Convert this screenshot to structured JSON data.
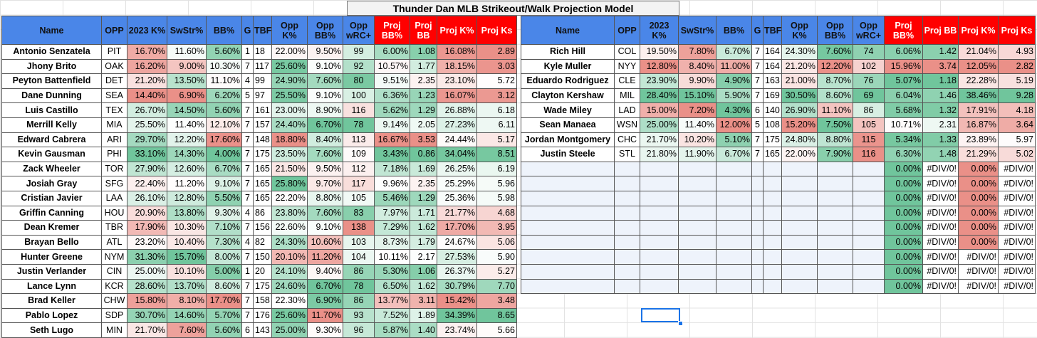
{
  "title": "Thunder Dan MLB Strikeout/Walk Projection Model",
  "colors": {
    "header_blue": "#4a86e8",
    "header_red": "#ff0000",
    "good_green": "#57bb8a",
    "bad_red": "#e67c73",
    "neutral": "#ffffff",
    "selection": "#1a73e8"
  },
  "columns": [
    "Name",
    "OPP",
    "2023 K%",
    "SwStr%",
    "BB%",
    "G",
    "TBF",
    "Opp K%",
    "Opp BB%",
    "Opp wRC+",
    "Proj BB%",
    "Proj BB",
    "Proj K%",
    "Proj Ks"
  ],
  "red_header_columns": [
    10,
    11,
    12,
    13
  ],
  "left_rows": [
    [
      "Antonio Senzatela",
      "PIT",
      "16.70%",
      "11.60%",
      "5.60%",
      "1",
      "18",
      "22.00%",
      "9.50%",
      "99",
      "6.00%",
      "1.08",
      "16.08%",
      "2.89"
    ],
    [
      "Jhony Brito",
      "OAK",
      "16.20%",
      "9.00%",
      "10.30%",
      "7",
      "117",
      "25.60%",
      "9.10%",
      "92",
      "10.57%",
      "1.77",
      "18.15%",
      "3.03"
    ],
    [
      "Peyton Battenfield",
      "DET",
      "21.20%",
      "13.50%",
      "11.10%",
      "4",
      "99",
      "24.90%",
      "7.60%",
      "80",
      "9.51%",
      "2.35",
      "23.10%",
      "5.72"
    ],
    [
      "Dane Dunning",
      "SEA",
      "14.40%",
      "6.90%",
      "6.20%",
      "5",
      "97",
      "25.50%",
      "9.10%",
      "100",
      "6.36%",
      "1.23",
      "16.07%",
      "3.12"
    ],
    [
      "Luis Castillo",
      "TEX",
      "26.70%",
      "14.50%",
      "5.60%",
      "7",
      "161",
      "23.00%",
      "8.90%",
      "116",
      "5.62%",
      "1.29",
      "26.88%",
      "6.18"
    ],
    [
      "Merrill Kelly",
      "MIA",
      "25.50%",
      "11.40%",
      "12.10%",
      "7",
      "157",
      "24.40%",
      "6.70%",
      "78",
      "9.14%",
      "2.05",
      "27.23%",
      "6.11"
    ],
    [
      "Edward Cabrera",
      "ARI",
      "29.70%",
      "12.20%",
      "17.60%",
      "7",
      "148",
      "18.80%",
      "8.40%",
      "113",
      "16.67%",
      "3.53",
      "24.44%",
      "5.17"
    ],
    [
      "Kevin Gausman",
      "PHI",
      "33.10%",
      "14.30%",
      "4.00%",
      "7",
      "175",
      "23.50%",
      "7.60%",
      "109",
      "3.43%",
      "0.86",
      "34.04%",
      "8.51"
    ],
    [
      "Zack Wheeler",
      "TOR",
      "27.90%",
      "12.60%",
      "6.70%",
      "7",
      "165",
      "21.50%",
      "9.50%",
      "112",
      "7.18%",
      "1.69",
      "26.25%",
      "6.19"
    ],
    [
      "Josiah Gray",
      "SFG",
      "22.40%",
      "11.20%",
      "9.10%",
      "7",
      "165",
      "25.80%",
      "9.70%",
      "117",
      "9.96%",
      "2.35",
      "25.29%",
      "5.96"
    ],
    [
      "Cristian Javier",
      "LAA",
      "26.10%",
      "12.80%",
      "5.50%",
      "7",
      "165",
      "22.20%",
      "8.80%",
      "105",
      "5.46%",
      "1.29",
      "25.36%",
      "5.98"
    ],
    [
      "Griffin Canning",
      "HOU",
      "20.90%",
      "13.80%",
      "9.30%",
      "4",
      "86",
      "23.80%",
      "7.60%",
      "83",
      "7.97%",
      "1.71",
      "21.77%",
      "4.68"
    ],
    [
      "Dean Kremer",
      "TBR",
      "17.90%",
      "10.30%",
      "7.10%",
      "7",
      "156",
      "22.60%",
      "9.10%",
      "138",
      "7.29%",
      "1.62",
      "17.70%",
      "3.95"
    ],
    [
      "Brayan Bello",
      "ATL",
      "23.20%",
      "10.40%",
      "7.30%",
      "4",
      "82",
      "24.30%",
      "10.60%",
      "103",
      "8.73%",
      "1.79",
      "24.67%",
      "5.06"
    ],
    [
      "Hunter Greene",
      "NYM",
      "31.30%",
      "15.70%",
      "8.00%",
      "7",
      "150",
      "20.10%",
      "11.20%",
      "104",
      "10.11%",
      "2.17",
      "27.53%",
      "5.90"
    ],
    [
      "Justin Verlander",
      "CIN",
      "25.00%",
      "10.10%",
      "5.00%",
      "1",
      "20",
      "24.10%",
      "9.40%",
      "86",
      "5.30%",
      "1.06",
      "26.37%",
      "5.27"
    ],
    [
      "Lance Lynn",
      "KCR",
      "28.60%",
      "13.70%",
      "8.60%",
      "7",
      "175",
      "24.60%",
      "6.70%",
      "78",
      "6.50%",
      "1.62",
      "30.79%",
      "7.70"
    ],
    [
      "Brad Keller",
      "CHW",
      "15.80%",
      "8.10%",
      "17.70%",
      "7",
      "158",
      "22.30%",
      "6.90%",
      "86",
      "13.77%",
      "3.11",
      "15.42%",
      "3.48"
    ],
    [
      "Pablo Lopez",
      "SDP",
      "30.70%",
      "14.60%",
      "5.70%",
      "7",
      "176",
      "25.60%",
      "11.70%",
      "93",
      "7.52%",
      "1.89",
      "34.39%",
      "8.65"
    ],
    [
      "Seth Lugo",
      "MIN",
      "21.70%",
      "7.60%",
      "5.60%",
      "6",
      "143",
      "25.00%",
      "9.30%",
      "96",
      "5.87%",
      "1.40",
      "23.74%",
      "5.66"
    ]
  ],
  "right_rows": [
    [
      "Rich Hill",
      "COL",
      "19.50%",
      "7.80%",
      "6.70%",
      "7",
      "164",
      "24.30%",
      "7.60%",
      "74",
      "6.06%",
      "1.42",
      "21.04%",
      "4.93"
    ],
    [
      "Kyle Muller",
      "NYY",
      "12.80%",
      "8.40%",
      "11.00%",
      "7",
      "164",
      "21.20%",
      "12.20%",
      "102",
      "15.96%",
      "3.74",
      "12.05%",
      "2.82"
    ],
    [
      "Eduardo Rodriguez",
      "CLE",
      "23.90%",
      "9.90%",
      "4.90%",
      "7",
      "163",
      "21.00%",
      "8.70%",
      "76",
      "5.07%",
      "1.18",
      "22.28%",
      "5.19"
    ],
    [
      "Clayton Kershaw",
      "MIL",
      "28.40%",
      "15.10%",
      "5.90%",
      "7",
      "169",
      "30.50%",
      "8.60%",
      "69",
      "6.04%",
      "1.46",
      "38.46%",
      "9.28"
    ],
    [
      "Wade Miley",
      "LAD",
      "15.00%",
      "7.20%",
      "4.30%",
      "6",
      "140",
      "26.90%",
      "11.10%",
      "86",
      "5.68%",
      "1.32",
      "17.91%",
      "4.18"
    ],
    [
      "Sean Manaea",
      "WSN",
      "25.00%",
      "11.40%",
      "12.00%",
      "5",
      "108",
      "15.20%",
      "7.50%",
      "105",
      "10.71%",
      "2.31",
      "16.87%",
      "3.64"
    ],
    [
      "Jordan Montgomery",
      "CHC",
      "21.70%",
      "10.20%",
      "5.10%",
      "7",
      "175",
      "24.80%",
      "8.80%",
      "115",
      "5.34%",
      "1.33",
      "23.89%",
      "5.97"
    ],
    [
      "Justin Steele",
      "STL",
      "21.80%",
      "11.90%",
      "6.70%",
      "7",
      "165",
      "22.00%",
      "7.90%",
      "116",
      "6.30%",
      "1.48",
      "21.29%",
      "5.02"
    ],
    [
      "",
      "",
      "",
      "",
      "",
      "",
      "",
      "",
      "",
      "",
      "0.00%",
      "#DIV/0!",
      "0.00%",
      "#DIV/0!"
    ],
    [
      "",
      "",
      "",
      "",
      "",
      "",
      "",
      "",
      "",
      "",
      "0.00%",
      "#DIV/0!",
      "0.00%",
      "#DIV/0!"
    ],
    [
      "",
      "",
      "",
      "",
      "",
      "",
      "",
      "",
      "",
      "",
      "0.00%",
      "#DIV/0!",
      "0.00%",
      "#DIV/0!"
    ],
    [
      "",
      "",
      "",
      "",
      "",
      "",
      "",
      "",
      "",
      "",
      "0.00%",
      "#DIV/0!",
      "0.00%",
      "#DIV/0!"
    ],
    [
      "",
      "",
      "",
      "",
      "",
      "",
      "",
      "",
      "",
      "",
      "0.00%",
      "#DIV/0!",
      "0.00%",
      "#DIV/0!"
    ],
    [
      "",
      "",
      "",
      "",
      "",
      "",
      "",
      "",
      "",
      "",
      "0.00%",
      "#DIV/0!",
      "0.00%",
      "#DIV/0!"
    ],
    [
      "",
      "",
      "",
      "",
      "",
      "",
      "",
      "",
      "",
      "",
      "0.00%",
      "#DIV/0!",
      "#DIV/0!",
      "#DIV/0!"
    ],
    [
      "",
      "",
      "",
      "",
      "",
      "",
      "",
      "",
      "",
      "",
      "0.00%",
      "#DIV/0!",
      "#DIV/0!",
      "#DIV/0!"
    ],
    [
      "",
      "",
      "",
      "",
      "",
      "",
      "",
      "",
      "",
      "",
      "0.00%",
      "#DIV/0!",
      "#DIV/0!",
      "#DIV/0!"
    ]
  ]
}
